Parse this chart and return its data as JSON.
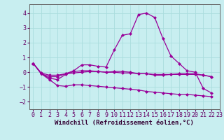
{
  "xlabel": "Windchill (Refroidissement éolien,°C)",
  "background_color": "#c8eef0",
  "grid_color": "#aadddd",
  "line_color": "#990099",
  "xlim": [
    -0.5,
    23
  ],
  "ylim": [
    -2.5,
    4.6
  ],
  "yticks": [
    -2,
    -1,
    0,
    1,
    2,
    3,
    4
  ],
  "xtick_labels": [
    "0",
    "1",
    "2",
    "3",
    "4",
    "5",
    "6",
    "7",
    "8",
    "9",
    "10",
    "11",
    "12",
    "13",
    "14",
    "15",
    "16",
    "17",
    "18",
    "19",
    "20",
    "21",
    "22",
    "23"
  ],
  "series": [
    [
      0.6,
      -0.1,
      -0.3,
      -0.3,
      -0.1,
      0.1,
      0.5,
      0.5,
      0.4,
      0.35,
      1.5,
      2.5,
      2.6,
      3.9,
      4.0,
      3.7,
      2.3,
      1.1,
      0.6,
      0.1,
      0.0,
      -1.1,
      -1.4
    ],
    [
      0.6,
      -0.1,
      -0.4,
      -0.5,
      -0.15,
      0.05,
      0.1,
      0.1,
      0.05,
      0.0,
      0.05,
      0.05,
      0.0,
      -0.1,
      -0.1,
      -0.2,
      -0.2,
      -0.15,
      -0.1,
      -0.1,
      -0.1,
      -0.2,
      -0.3
    ],
    [
      0.6,
      -0.1,
      -0.5,
      -0.9,
      -0.95,
      -0.85,
      -0.85,
      -0.9,
      -0.95,
      -1.0,
      -1.05,
      -1.1,
      -1.15,
      -1.2,
      -1.3,
      -1.35,
      -1.4,
      -1.45,
      -1.5,
      -1.5,
      -1.55,
      -1.6,
      -1.65
    ],
    [
      0.6,
      -0.05,
      -0.2,
      -0.2,
      -0.1,
      -0.05,
      0.0,
      0.05,
      0.05,
      0.0,
      0.0,
      -0.05,
      -0.05,
      -0.1,
      -0.1,
      -0.15,
      -0.15,
      -0.15,
      -0.15,
      -0.15,
      -0.15,
      -0.2,
      -0.3
    ]
  ],
  "xlabel_fontsize": 6.5,
  "tick_fontsize": 6.0,
  "marker_size": 2.0,
  "line_width": 0.9
}
